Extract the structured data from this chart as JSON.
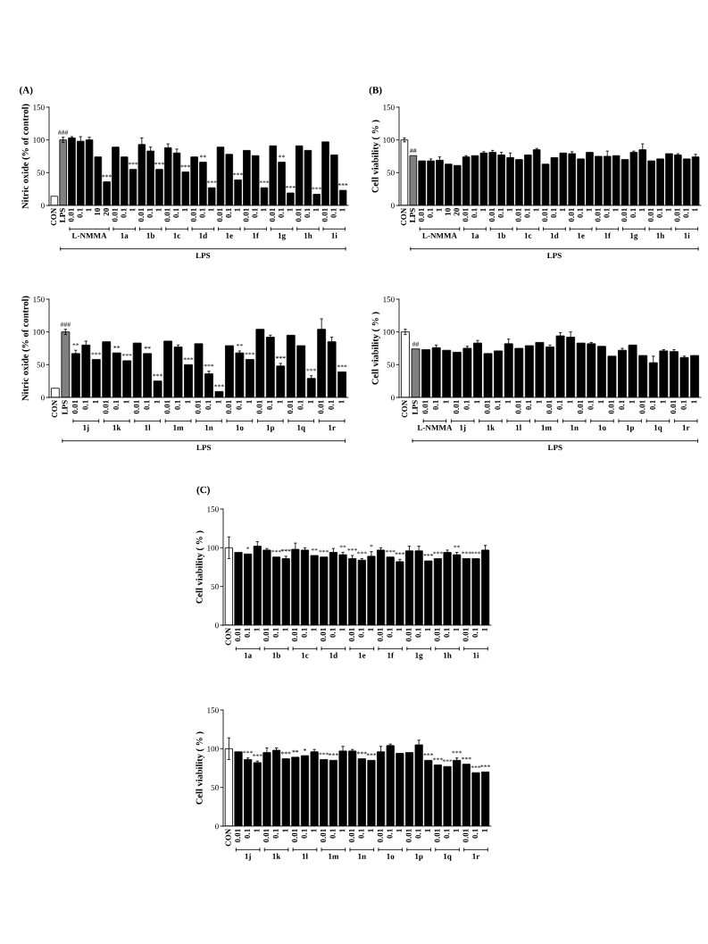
{
  "chart_data": [
    {
      "type": "bar",
      "title": "(A)",
      "ylabel": "Nitric oxide (% of control)",
      "xlabel": "LPS",
      "ylim": [
        0,
        150
      ],
      "yticks": [
        0,
        50,
        100,
        150
      ],
      "categories": [
        "CON",
        "LPS",
        "0.01",
        "0.1",
        "1",
        "10",
        "20",
        "0.01",
        "0.1",
        "1",
        "0.01",
        "0.1",
        "1",
        "0.01",
        "0.1",
        "1",
        "0.01",
        "0.1",
        "1",
        "0.01",
        "0.1",
        "1",
        "0.01",
        "0.1",
        "1",
        "0.01",
        "0.1",
        "1",
        "0.01",
        "0.1",
        "1",
        "0.01",
        "0.1",
        "1"
      ],
      "values": [
        14,
        100,
        103,
        98,
        100,
        74,
        36,
        89,
        74,
        55,
        93,
        83,
        55,
        88,
        80,
        51,
        74,
        66,
        27,
        89,
        78,
        39,
        84,
        76,
        27,
        91,
        66,
        19,
        91,
        84,
        17,
        97,
        77,
        23
      ],
      "colors": [
        "#ffffff",
        "#808080",
        "#000000",
        "#000000",
        "#000000",
        "#000000",
        "#000000",
        "#000000",
        "#000000",
        "#000000",
        "#000000",
        "#000000",
        "#000000",
        "#000000",
        "#000000",
        "#000000",
        "#000000",
        "#000000",
        "#000000",
        "#000000",
        "#000000",
        "#000000",
        "#000000",
        "#000000",
        "#000000",
        "#000000",
        "#000000",
        "#000000",
        "#000000",
        "#000000",
        "#000000",
        "#000000",
        "#000000",
        "#000000"
      ],
      "errors": [
        null,
        4,
        2,
        7,
        4,
        null,
        null,
        null,
        null,
        null,
        10,
        6,
        null,
        6,
        6,
        null,
        null,
        null,
        null,
        null,
        null,
        null,
        null,
        null,
        null,
        null,
        null,
        null,
        null,
        null,
        null,
        null,
        null,
        null
      ],
      "value_labels": [
        null,
        "###",
        null,
        null,
        null,
        null,
        "***",
        null,
        null,
        "***",
        null,
        null,
        "***",
        null,
        null,
        "***",
        null,
        "**",
        "***",
        null,
        null,
        "***",
        null,
        null,
        "***",
        null,
        "**",
        "***",
        null,
        null,
        "***",
        null,
        null,
        "***"
      ],
      "annotations": [
        "L-NMMA",
        "1a",
        "1b",
        "1c",
        "1d",
        "1e",
        "1f",
        "1g",
        "1h",
        "1i"
      ]
    },
    {
      "type": "bar",
      "ylabel": "Nitric oxide (% of control)",
      "xlabel": "LPS",
      "ylim": [
        0,
        150
      ],
      "yticks": [
        0,
        50,
        100,
        150
      ],
      "categories": [
        "CON",
        "LPS",
        "0.01",
        "0.1",
        "1",
        "0.01",
        "0.1",
        "1",
        "0.01",
        "0.1",
        "1",
        "0.01",
        "0.1",
        "1",
        "0.01",
        "0.1",
        "1",
        "0.01",
        "0.1",
        "1",
        "0.01",
        "0.1",
        "1",
        "0.01",
        "0.1",
        "1",
        "0.01",
        "0.1",
        "1"
      ],
      "values": [
        14,
        100,
        67,
        80,
        58,
        85,
        68,
        56,
        83,
        67,
        25,
        86,
        77,
        50,
        82,
        36,
        9,
        79,
        68,
        58,
        104,
        92,
        48,
        95,
        79,
        29,
        104,
        85,
        39
      ],
      "colors": [
        "#ffffff",
        "#808080",
        "#000000",
        "#000000",
        "#000000",
        "#000000",
        "#000000",
        "#000000",
        "#000000",
        "#000000",
        "#000000",
        "#000000",
        "#000000",
        "#000000",
        "#000000",
        "#000000",
        "#000000",
        "#000000",
        "#000000",
        "#000000",
        "#000000",
        "#000000",
        "#000000",
        "#000000",
        "#000000",
        "#000000",
        "#000000",
        "#000000",
        "#000000"
      ],
      "errors": [
        null,
        4,
        5,
        6,
        null,
        null,
        null,
        null,
        null,
        null,
        null,
        null,
        3,
        null,
        null,
        4,
        null,
        null,
        3,
        null,
        null,
        3,
        4,
        null,
        null,
        4,
        16,
        7,
        null
      ],
      "value_labels": [
        null,
        "###",
        "**",
        null,
        "***",
        null,
        "**",
        "***",
        null,
        "**",
        "***",
        null,
        null,
        "***",
        null,
        "***",
        "***",
        null,
        "**",
        "***",
        null,
        null,
        "***",
        null,
        null,
        "***",
        null,
        null,
        "***"
      ],
      "annotations": [
        "1j",
        "1k",
        "1l",
        "1m",
        "1n",
        "1o",
        "1p",
        "1q",
        "1r"
      ]
    },
    {
      "type": "bar",
      "title": "(B)",
      "ylabel": "Cell viability ( % )",
      "xlabel": "LPS",
      "ylim": [
        0,
        150
      ],
      "yticks": [
        0,
        50,
        100,
        150
      ],
      "categories": [
        "CON",
        "LPS",
        "0.01",
        "0.1",
        "1",
        "10",
        "20",
        "0.01",
        "0.1",
        "1",
        "0.01",
        "0.1",
        "1",
        "0.01",
        "0.1",
        "1",
        "0.01",
        "0.1",
        "1",
        "0.01",
        "0.1",
        "1",
        "0.01",
        "0.1",
        "1",
        "0.01",
        "0.1",
        "1",
        "0.01",
        "0.1",
        "1",
        "0.01",
        "0.1",
        "1"
      ],
      "values": [
        100,
        76,
        68,
        68,
        69,
        63,
        61,
        74,
        76,
        80,
        81,
        77,
        73,
        70,
        77,
        85,
        63,
        73,
        80,
        79,
        71,
        81,
        75,
        75,
        76,
        70,
        81,
        85,
        68,
        71,
        79,
        77,
        71,
        74
      ],
      "colors": [
        "#ffffff",
        "#808080",
        "#000000",
        "#000000",
        "#000000",
        "#000000",
        "#000000",
        "#000000",
        "#000000",
        "#000000",
        "#000000",
        "#000000",
        "#000000",
        "#000000",
        "#000000",
        "#000000",
        "#000000",
        "#000000",
        "#000000",
        "#000000",
        "#000000",
        "#000000",
        "#000000",
        "#000000",
        "#000000",
        "#000000",
        "#000000",
        "#000000",
        "#000000",
        "#000000",
        "#000000",
        "#000000",
        "#000000",
        "#000000"
      ],
      "errors": [
        3,
        null,
        null,
        3,
        5,
        null,
        null,
        2,
        null,
        2,
        3,
        4,
        7,
        null,
        null,
        2,
        null,
        null,
        null,
        3,
        null,
        null,
        null,
        8,
        null,
        null,
        2,
        9,
        null,
        null,
        null,
        2,
        null,
        4
      ],
      "value_labels": [
        null,
        "##",
        null,
        null,
        null,
        null,
        null,
        null,
        null,
        null,
        null,
        null,
        null,
        null,
        null,
        null,
        null,
        null,
        null,
        null,
        null,
        null,
        null,
        null,
        null,
        null,
        null,
        null,
        null,
        null,
        null,
        null,
        null,
        null
      ],
      "annotations": [
        "L-NMMA",
        "1a",
        "1b",
        "1c",
        "1d",
        "1e",
        "1f",
        "1g",
        "1h",
        "1i"
      ]
    },
    {
      "type": "bar",
      "ylabel": "Cell viability ( % )",
      "xlabel": "LPS",
      "ylim": [
        0,
        150
      ],
      "yticks": [
        0,
        50,
        100,
        150
      ],
      "categories": [
        "CON",
        "LPS",
        "0.01",
        "0.1",
        "1",
        "0.01",
        "0.1",
        "1",
        "0.01",
        "0.1",
        "1",
        "0.01",
        "0.1",
        "1",
        "0.01",
        "0.1",
        "1",
        "0.01",
        "0.1",
        "1",
        "0.01",
        "0.1",
        "1",
        "0.01",
        "0.1",
        "1",
        "0.01",
        "0.1",
        "1"
      ],
      "values": [
        100,
        74,
        73,
        76,
        72,
        69,
        75,
        83,
        67,
        71,
        82,
        75,
        79,
        84,
        77,
        94,
        92,
        83,
        82,
        78,
        63,
        72,
        80,
        64,
        53,
        71,
        70,
        61,
        64
      ],
      "colors": [
        "#ffffff",
        "#808080",
        "#000000",
        "#000000",
        "#000000",
        "#000000",
        "#000000",
        "#000000",
        "#000000",
        "#000000",
        "#000000",
        "#000000",
        "#000000",
        "#000000",
        "#000000",
        "#000000",
        "#000000",
        "#000000",
        "#000000",
        "#000000",
        "#000000",
        "#000000",
        "#000000",
        "#000000",
        "#000000",
        "#000000",
        "#000000",
        "#000000",
        "#000000"
      ],
      "errors": [
        4,
        null,
        null,
        4,
        null,
        null,
        3,
        4,
        null,
        null,
        7,
        null,
        null,
        null,
        3,
        5,
        8,
        null,
        2,
        null,
        null,
        3,
        null,
        null,
        10,
        2,
        3,
        2,
        null
      ],
      "value_labels": [
        null,
        "##",
        null,
        null,
        null,
        null,
        null,
        null,
        null,
        null,
        null,
        null,
        null,
        null,
        null,
        null,
        null,
        null,
        null,
        null,
        null,
        null,
        null,
        null,
        null,
        null,
        null,
        null,
        null
      ],
      "annotations": [
        "L-NMMA",
        "1j",
        "1k",
        "1l",
        "1m",
        "1n",
        "1o",
        "1p",
        "1q",
        "1r"
      ]
    },
    {
      "type": "bar",
      "title": "(C)",
      "ylabel": "Cell viability ( % )",
      "ylim": [
        0,
        150
      ],
      "yticks": [
        0,
        50,
        100,
        150
      ],
      "categories": [
        "CON",
        "0.01",
        "0.1",
        "1",
        "0.01",
        "0.1",
        "1",
        "0.01",
        "0.1",
        "1",
        "0.01",
        "0.1",
        "1",
        "0.01",
        "0.1",
        "1",
        "0.01",
        "0.1",
        "1",
        "0.01",
        "0.1",
        "1",
        "0.01",
        "0.1",
        "1",
        "0.01",
        "0.1",
        "1"
      ],
      "values": [
        100,
        94,
        92,
        102,
        97,
        88,
        86,
        98,
        97,
        90,
        88,
        94,
        91,
        86,
        84,
        89,
        97,
        88,
        82,
        96,
        96,
        83,
        86,
        94,
        91,
        86,
        86,
        97
      ],
      "colors": [
        "#ffffff",
        "#000000",
        "#000000",
        "#000000",
        "#000000",
        "#000000",
        "#000000",
        "#000000",
        "#000000",
        "#000000",
        "#000000",
        "#000000",
        "#000000",
        "#000000",
        "#000000",
        "#000000",
        "#000000",
        "#000000",
        "#000000",
        "#000000",
        "#000000",
        "#000000",
        "#000000",
        "#000000",
        "#000000",
        "#000000",
        "#000000",
        "#000000"
      ],
      "errors": [
        14,
        null,
        null,
        6,
        2,
        null,
        3,
        8,
        3,
        null,
        null,
        5,
        3,
        4,
        2,
        6,
        3,
        null,
        3,
        6,
        6,
        null,
        null,
        3,
        3,
        null,
        null,
        6
      ],
      "value_labels": [
        null,
        null,
        "*",
        null,
        null,
        "***",
        "***",
        null,
        null,
        "**",
        "***",
        null,
        "**",
        "***",
        "***",
        "*",
        null,
        "***",
        "***",
        null,
        null,
        "***",
        "***",
        null,
        "**",
        "***",
        "***",
        null
      ],
      "annotations": [
        "1a",
        "1b",
        "1c",
        "1d",
        "1e",
        "1f",
        "1g",
        "1h",
        "1i"
      ]
    },
    {
      "type": "bar",
      "ylabel": "Cell viability ( % )",
      "ylim": [
        0,
        150
      ],
      "yticks": [
        0,
        50,
        100,
        150
      ],
      "categories": [
        "CON",
        "0.01",
        "0.1",
        "1",
        "0.01",
        "0.1",
        "1",
        "0.01",
        "0.1",
        "1",
        "0.01",
        "0.1",
        "1",
        "0.01",
        "0.1",
        "1",
        "0.01",
        "0.1",
        "1",
        "0.01",
        "0.1",
        "1",
        "0.01",
        "0.1",
        "1",
        "0.01",
        "0.1",
        "1"
      ],
      "values": [
        100,
        96,
        86,
        82,
        95,
        98,
        87,
        89,
        91,
        96,
        86,
        85,
        97,
        97,
        87,
        85,
        96,
        104,
        94,
        95,
        105,
        85,
        79,
        77,
        85,
        80,
        69,
        70
      ],
      "colors": [
        "#ffffff",
        "#000000",
        "#000000",
        "#000000",
        "#000000",
        "#000000",
        "#000000",
        "#000000",
        "#000000",
        "#000000",
        "#000000",
        "#000000",
        "#000000",
        "#000000",
        "#000000",
        "#000000",
        "#000000",
        "#000000",
        "#000000",
        "#000000",
        "#000000",
        "#000000",
        "#000000",
        "#000000",
        "#000000",
        "#000000",
        "#000000",
        "#000000"
      ],
      "errors": [
        14,
        null,
        2,
        2,
        6,
        3,
        null,
        null,
        null,
        3,
        null,
        null,
        6,
        2,
        null,
        null,
        7,
        2,
        null,
        null,
        6,
        null,
        null,
        null,
        3,
        null,
        null,
        null
      ],
      "value_labels": [
        null,
        null,
        "***",
        "***",
        null,
        null,
        "***",
        "**",
        "*",
        null,
        "***",
        "***",
        null,
        null,
        "***",
        "***",
        null,
        null,
        null,
        null,
        null,
        "***",
        "***",
        "***",
        "***",
        "***",
        "***",
        "***"
      ],
      "annotations": [
        "1j",
        "1k",
        "1l",
        "1m",
        "1n",
        "1o",
        "1p",
        "1q",
        "1r"
      ]
    }
  ]
}
